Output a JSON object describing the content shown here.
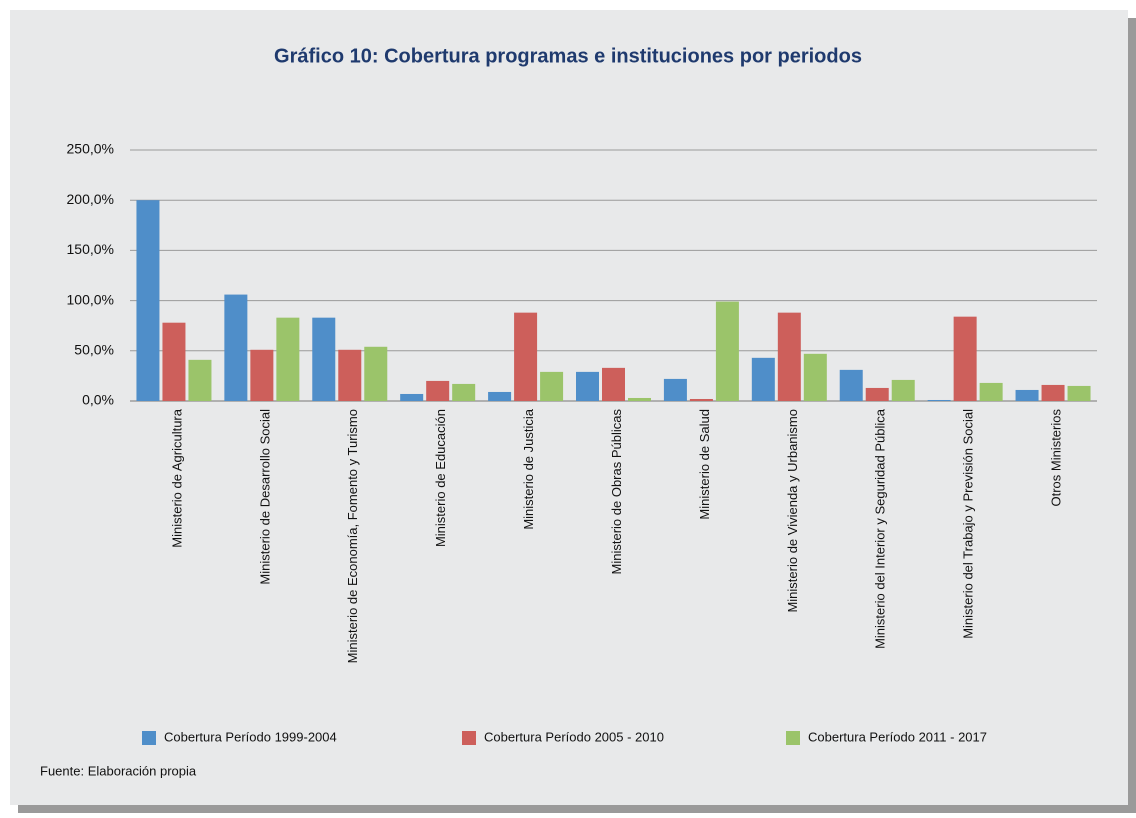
{
  "chart_data": {
    "type": "bar",
    "title": "Gráfico 10: Cobertura programas e instituciones por periodos",
    "categories": [
      "Ministerio de Agricultura",
      "Ministerio de Desarrollo Social",
      "Ministerio de Economía, Fomento y Turismo",
      "Ministerio de Educación",
      "Ministerio de Justicia",
      "Ministerio de Obras Públicas",
      "Ministerio de Salud",
      "Ministerio de Vivienda y Urbanismo",
      "Ministerio del Interior y Seguridad Pública",
      "Ministerio del Trabajo y Previsión Social",
      "Otros Ministerios"
    ],
    "series": [
      {
        "name": "Cobertura Período 1999-2004",
        "color": "#4f8ec9",
        "values": [
          200,
          106,
          83,
          7,
          9,
          29,
          22,
          43,
          31,
          1,
          11
        ]
      },
      {
        "name": "Cobertura Período 2005 - 2010",
        "color": "#cd5f5b",
        "values": [
          78,
          51,
          51,
          20,
          88,
          33,
          2,
          88,
          13,
          84,
          16
        ]
      },
      {
        "name": "Cobertura Período 2011 - 2017",
        "color": "#9bc46a",
        "values": [
          41,
          83,
          54,
          17,
          29,
          3,
          99,
          47,
          21,
          18,
          15
        ]
      }
    ],
    "ylim": [
      0,
      250
    ],
    "yticks": [
      {
        "value": 0,
        "label": "0,0%"
      },
      {
        "value": 50,
        "label": "50,0%"
      },
      {
        "value": 100,
        "label": "100,0%"
      },
      {
        "value": 150,
        "label": "150,0%"
      },
      {
        "value": 200,
        "label": "200,0%"
      },
      {
        "value": 250,
        "label": "250,0%"
      }
    ],
    "grid": true,
    "legend": "bottom",
    "source": "Fuente: Elaboración propia"
  }
}
